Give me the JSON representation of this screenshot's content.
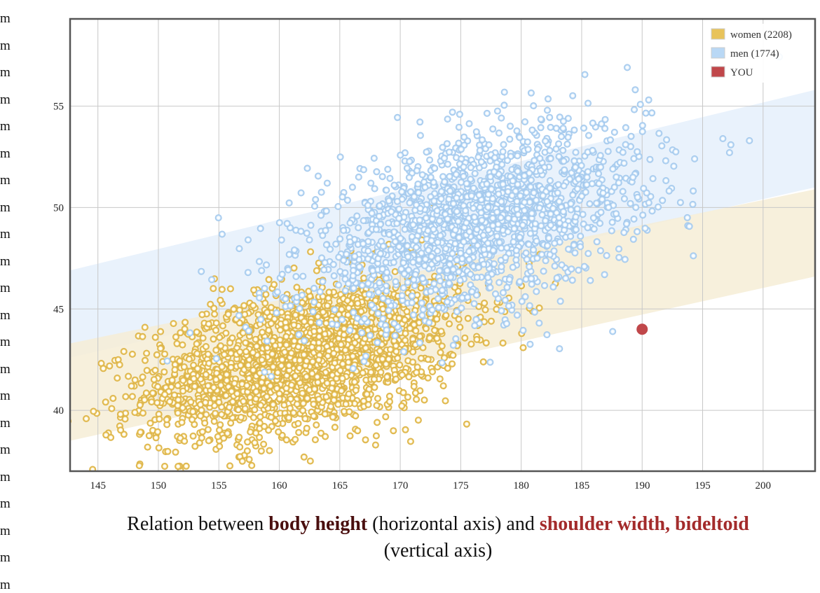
{
  "left_column": {
    "fragments": [
      "m",
      "m",
      "m",
      "m",
      "m",
      "m",
      "m",
      "m",
      "m",
      "m",
      "m",
      "m",
      "m",
      "m",
      "m",
      "m",
      "m",
      "m",
      "m",
      "m",
      "m",
      "m"
    ]
  },
  "caption": {
    "prefix": "Relation between ",
    "bold1": "body height",
    "middle": " (horizontal axis) and ",
    "bold2": "shoulder width, bideltoid",
    "suffix": " (vertical axis)"
  },
  "chart_data": {
    "type": "scatter",
    "title": "Relation between body height (horizontal axis) and shoulder width, bideltoid (vertical axis)",
    "xlabel": "body height",
    "ylabel": "shoulder width, bideltoid",
    "xlim": [
      142.7,
      204.3
    ],
    "ylim": [
      37.0,
      59.3
    ],
    "x_ticks": [
      145,
      150,
      155,
      160,
      165,
      170,
      175,
      180,
      185,
      190,
      195,
      200
    ],
    "y_ticks": [
      40,
      45,
      50,
      55
    ],
    "grid": true,
    "legend_position": "top-right",
    "colors": {
      "women": "#e8c35a",
      "men": "#b9d8f5",
      "you": "#c0474a",
      "women_band": "#f6edd6",
      "men_band": "#e9f2fc"
    },
    "series": [
      {
        "name": "women",
        "legend_label": "women (2208)",
        "count": 2208,
        "distribution": {
          "mean_x": 162,
          "mean_y": 42.6,
          "sd_x": 6.5,
          "sd_y": 2.0,
          "corr": 0.45
        },
        "band": {
          "x": [
            142.7,
            204.3
          ],
          "upper": [
            43.3,
            50.9
          ],
          "lower": [
            38.5,
            46.6
          ]
        }
      },
      {
        "name": "men",
        "legend_label": "men (1774)",
        "count": 1774,
        "distribution": {
          "mean_x": 176,
          "mean_y": 49.2,
          "sd_x": 7.0,
          "sd_y": 2.3,
          "corr": 0.45
        },
        "band": {
          "x": [
            142.7,
            204.3
          ],
          "upper": [
            46.9,
            55.8
          ],
          "lower": [
            42.6,
            51.0
          ]
        }
      },
      {
        "name": "YOU",
        "legend_label": "YOU",
        "points": [
          {
            "x": 190,
            "y": 44
          }
        ]
      }
    ]
  }
}
